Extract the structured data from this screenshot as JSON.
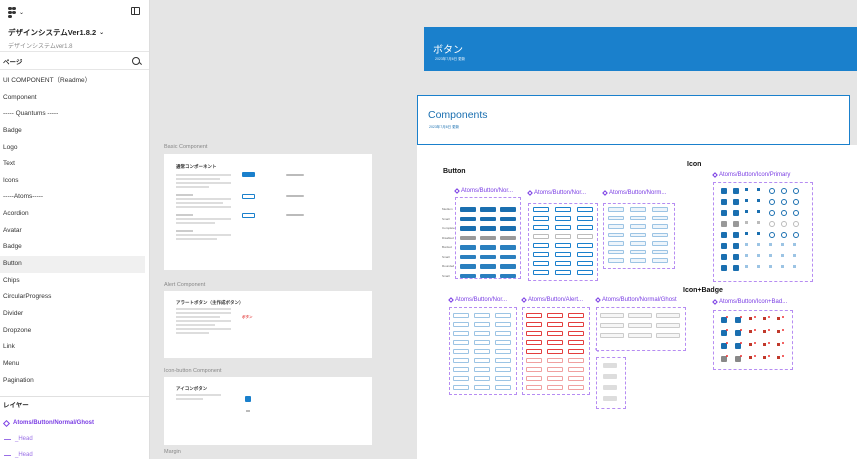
{
  "file": {
    "title": "デザインシステムVer1.8.2",
    "subtitle": "デザインシステムver1.8"
  },
  "pages": {
    "header": "ページ",
    "items": [
      "UI COMPONENT（Readme）",
      "Component",
      "----- Quantums -----",
      "Badge",
      "Logo",
      "Text",
      "Icons",
      "-----Atoms-----",
      "Acordion",
      "Avatar",
      "Badge",
      "Button",
      "Chips",
      "CircularProgress",
      "Divider",
      "Dropzone",
      "Link",
      "Menu",
      "Pagination"
    ],
    "active_index": 11
  },
  "layers": {
    "header": "レイヤー",
    "items": [
      "Atoms/Button/Normal/Ghost",
      "_Head",
      "_Head"
    ]
  },
  "canvas": {
    "sections": {
      "basic": "Basic Component",
      "alert": "Alert Component",
      "icon_button": "Icon-button Component",
      "margin": "Margin"
    },
    "basic_frame": {
      "heading": "通常コンポーネント",
      "btn": "ボタン",
      "btn_text": "テキストボタン"
    },
    "alert_frame": {
      "heading": "アラートボタン（主作成ボタン）",
      "btn": "ボタン"
    },
    "icon_frame": {
      "heading": "アイコンボタン"
    },
    "banner": {
      "title": "ボタン",
      "date": "2023年7月6日 更新"
    },
    "components": {
      "title": "Components",
      "date": "2023年7月6日 更新"
    },
    "groups": {
      "button": "Button",
      "icon": "Icon",
      "icon_badge": "Icon+Badge"
    },
    "component_labels": {
      "normal_1": "Atoms/Button/Nor...",
      "normal_2": "Atoms/Button/Nor...",
      "normal_3": "Atoms/Button/Norm...",
      "alert_1": "Atoms/Button/Nor...",
      "alert_2": "Atoms/Button/Alert...",
      "ghost": "Atoms/Button/Normal/Ghost",
      "icon_primary": "Atoms/Button/Icon/Primary",
      "icon_badge": "Atoms/Button/Icon+Bad..."
    },
    "row_labels": [
      "Medium",
      "Small",
      "Complete",
      "Disabled",
      "Borded",
      "Small",
      "Rounded",
      "Small"
    ]
  },
  "colors": {
    "primary": "#1a80cc",
    "accent_purple": "#7b3fe4",
    "alert": "#e33d3d"
  }
}
